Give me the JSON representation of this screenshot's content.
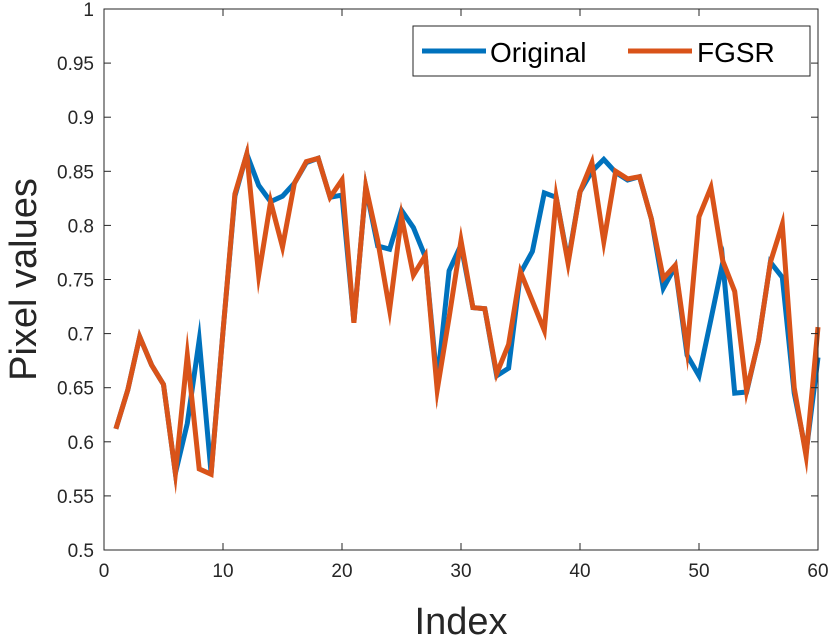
{
  "chart_data": {
    "type": "line",
    "xlabel": "Index",
    "ylabel": "Pixel values",
    "xlim": [
      0,
      60
    ],
    "ylim": [
      0.5,
      1
    ],
    "xticks": [
      0,
      10,
      20,
      30,
      40,
      50,
      60
    ],
    "yticks": [
      0.5,
      0.55,
      0.6,
      0.65,
      0.7,
      0.75,
      0.8,
      0.85,
      0.9,
      0.95,
      1
    ],
    "ytick_labels": [
      "0.5",
      "0.55",
      "0.6",
      "0.65",
      "0.7",
      "0.75",
      "0.8",
      "0.85",
      "0.9",
      "0.95",
      "1"
    ],
    "grid": false,
    "legend": {
      "position": "top-right",
      "orientation": "horizontal"
    },
    "x": [
      1,
      2,
      3,
      4,
      5,
      6,
      7,
      8,
      9,
      10,
      11,
      12,
      13,
      14,
      15,
      16,
      17,
      18,
      19,
      20,
      21,
      22,
      23,
      24,
      25,
      26,
      27,
      28,
      29,
      30,
      31,
      32,
      33,
      34,
      35,
      36,
      37,
      38,
      39,
      40,
      41,
      42,
      43,
      44,
      45,
      46,
      47,
      48,
      49,
      50,
      51,
      52,
      53,
      54,
      55,
      56,
      57,
      58,
      59,
      60
    ],
    "series": [
      {
        "name": "Original",
        "color": "#0072BD",
        "values": [
          0.612,
          0.648,
          0.697,
          0.671,
          0.653,
          0.571,
          0.617,
          0.694,
          0.571,
          0.702,
          0.827,
          0.866,
          0.837,
          0.822,
          0.827,
          0.839,
          0.858,
          0.862,
          0.826,
          0.828,
          0.711,
          0.835,
          0.781,
          0.778,
          0.814,
          0.798,
          0.771,
          0.655,
          0.758,
          0.782,
          0.724,
          0.723,
          0.661,
          0.668,
          0.756,
          0.776,
          0.83,
          0.826,
          0.767,
          0.831,
          0.85,
          0.861,
          0.849,
          0.842,
          0.845,
          0.806,
          0.742,
          0.762,
          0.68,
          0.661,
          0.713,
          0.766,
          0.645,
          0.646,
          0.693,
          0.766,
          0.752,
          0.645,
          0.59,
          0.678
        ]
      },
      {
        "name": "FGSR",
        "color": "#D95319",
        "values": [
          0.612,
          0.648,
          0.697,
          0.671,
          0.653,
          0.571,
          0.68,
          0.575,
          0.57,
          0.702,
          0.829,
          0.866,
          0.754,
          0.822,
          0.78,
          0.839,
          0.859,
          0.862,
          0.826,
          0.842,
          0.71,
          0.836,
          0.786,
          0.722,
          0.808,
          0.754,
          0.772,
          0.648,
          0.715,
          0.786,
          0.724,
          0.723,
          0.663,
          0.69,
          0.757,
          0.73,
          0.703,
          0.826,
          0.765,
          0.831,
          0.858,
          0.785,
          0.85,
          0.843,
          0.845,
          0.806,
          0.751,
          0.763,
          0.685,
          0.808,
          0.835,
          0.767,
          0.739,
          0.647,
          0.693,
          0.766,
          0.801,
          0.65,
          0.587,
          0.706
        ]
      }
    ]
  }
}
